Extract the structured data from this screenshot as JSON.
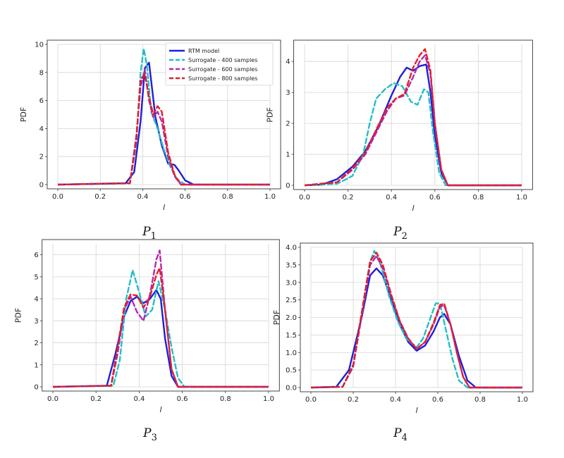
{
  "figure": {
    "legend": [
      {
        "label": "RTM model",
        "color": "#1f1fd6",
        "dash": "solid"
      },
      {
        "label": "Surrogate - 400 samples",
        "color": "#22bfc4",
        "dash": "dashed"
      },
      {
        "label": "Surrogate - 600 samples",
        "color": "#b22ab2",
        "dash": "dashed"
      },
      {
        "label": "Surrogate - 800 samples",
        "color": "#e0202a",
        "dash": "dashed"
      }
    ]
  },
  "chart_data": [
    {
      "type": "line",
      "caption": "P",
      "caption_sub": "1",
      "xlabel": "l",
      "ylabel": "PDF",
      "xlim": [
        0,
        1
      ],
      "ylim": [
        0,
        10
      ],
      "xticks": [
        0.0,
        0.2,
        0.4,
        0.6,
        0.8,
        1.0
      ],
      "yticks": [
        0,
        2,
        4,
        6,
        8,
        10
      ],
      "yfmt": 0,
      "grid": true,
      "legend": "top-right",
      "series": [
        {
          "name": "RTM model",
          "color": "#1f1fd6",
          "dash": "solid",
          "x": [
            0.0,
            0.32,
            0.36,
            0.39,
            0.41,
            0.43,
            0.46,
            0.49,
            0.52,
            0.55,
            0.57,
            0.6,
            0.64,
            1.0
          ],
          "y": [
            0,
            0.1,
            0.9,
            4.5,
            8.3,
            8.7,
            4.8,
            2.8,
            1.5,
            1.4,
            1.0,
            0.3,
            0,
            0
          ]
        },
        {
          "name": "Surrogate - 400 samples",
          "color": "#22bfc4",
          "dash": "dashed",
          "x": [
            0.0,
            0.34,
            0.37,
            0.39,
            0.405,
            0.42,
            0.44,
            0.47,
            0.5,
            0.53,
            0.56,
            0.6,
            1.0
          ],
          "y": [
            0,
            0.1,
            3.0,
            8.0,
            9.7,
            8.5,
            5.2,
            4.0,
            2.5,
            1.3,
            0.4,
            0,
            0
          ]
        },
        {
          "name": "Surrogate - 600 samples",
          "color": "#b22ab2",
          "dash": "dashed",
          "x": [
            0.0,
            0.34,
            0.37,
            0.39,
            0.41,
            0.43,
            0.45,
            0.47,
            0.49,
            0.52,
            0.55,
            0.58,
            1.0
          ],
          "y": [
            0,
            0.1,
            3.5,
            7.0,
            8.2,
            6.0,
            4.8,
            5.2,
            4.5,
            2.0,
            0.6,
            0,
            0
          ]
        },
        {
          "name": "Surrogate - 800 samples",
          "color": "#e0202a",
          "dash": "dashed",
          "x": [
            0.0,
            0.34,
            0.37,
            0.39,
            0.41,
            0.43,
            0.45,
            0.47,
            0.49,
            0.52,
            0.55,
            0.58,
            1.0
          ],
          "y": [
            0,
            0.1,
            3.2,
            7.5,
            7.9,
            6.2,
            5.0,
            5.6,
            5.2,
            2.3,
            0.7,
            0,
            0
          ]
        }
      ]
    },
    {
      "type": "line",
      "caption": "P",
      "caption_sub": "2",
      "xlabel": "l",
      "ylabel": "PDF",
      "xlim": [
        0,
        1
      ],
      "ylim": [
        0,
        4.55
      ],
      "xticks": [
        0.0,
        0.2,
        0.4,
        0.6,
        0.8,
        1.0
      ],
      "yticks": [
        0,
        1,
        2,
        3,
        4
      ],
      "yfmt": 0,
      "grid": true,
      "series": [
        {
          "name": "RTM model",
          "color": "#1f1fd6",
          "dash": "solid",
          "x": [
            0.0,
            0.08,
            0.15,
            0.22,
            0.28,
            0.34,
            0.4,
            0.44,
            0.47,
            0.5,
            0.53,
            0.56,
            0.58,
            0.6,
            0.63,
            0.66,
            1.0
          ],
          "y": [
            0,
            0.02,
            0.2,
            0.6,
            1.1,
            1.9,
            2.9,
            3.5,
            3.8,
            3.7,
            3.85,
            3.9,
            3.0,
            1.6,
            0.4,
            0,
            0
          ]
        },
        {
          "name": "Surrogate - 400 samples",
          "color": "#22bfc4",
          "dash": "dashed",
          "x": [
            0.0,
            0.15,
            0.22,
            0.27,
            0.3,
            0.33,
            0.37,
            0.41,
            0.45,
            0.49,
            0.52,
            0.55,
            0.57,
            0.59,
            0.62,
            0.65,
            1.0
          ],
          "y": [
            0,
            0.05,
            0.3,
            1.0,
            2.0,
            2.8,
            3.1,
            3.3,
            3.2,
            2.7,
            2.6,
            3.1,
            3.0,
            1.8,
            0.4,
            0,
            0
          ]
        },
        {
          "name": "Surrogate - 600 samples",
          "color": "#b22ab2",
          "dash": "dashed",
          "x": [
            0.0,
            0.15,
            0.22,
            0.28,
            0.33,
            0.38,
            0.42,
            0.46,
            0.5,
            0.53,
            0.555,
            0.58,
            0.6,
            0.63,
            0.66,
            1.0
          ],
          "y": [
            0,
            0.1,
            0.5,
            1.0,
            1.7,
            2.4,
            2.8,
            2.9,
            3.5,
            4.0,
            4.2,
            3.6,
            2.0,
            0.5,
            0,
            0
          ]
        },
        {
          "name": "Surrogate - 800 samples",
          "color": "#e0202a",
          "dash": "dashed",
          "x": [
            0.0,
            0.15,
            0.22,
            0.28,
            0.33,
            0.38,
            0.42,
            0.46,
            0.5,
            0.53,
            0.555,
            0.58,
            0.6,
            0.63,
            0.66,
            1.0
          ],
          "y": [
            0,
            0.1,
            0.55,
            1.05,
            1.8,
            2.5,
            2.8,
            2.95,
            3.8,
            4.2,
            4.4,
            3.7,
            2.0,
            0.5,
            0,
            0
          ]
        }
      ]
    },
    {
      "type": "line",
      "caption": "P",
      "caption_sub": "3",
      "xlabel": "l",
      "ylabel": "PDF",
      "xlim": [
        0,
        1
      ],
      "ylim": [
        0,
        6.5
      ],
      "xticks": [
        0.0,
        0.2,
        0.4,
        0.6,
        0.8,
        1.0
      ],
      "yticks": [
        0,
        1,
        2,
        3,
        4,
        5,
        6
      ],
      "yfmt": 0,
      "grid": true,
      "series": [
        {
          "name": "RTM model",
          "color": "#1f1fd6",
          "dash": "solid",
          "x": [
            0.0,
            0.25,
            0.29,
            0.33,
            0.36,
            0.39,
            0.42,
            0.45,
            0.48,
            0.5,
            0.52,
            0.55,
            0.58,
            1.0
          ],
          "y": [
            0,
            0.05,
            1.5,
            3.2,
            3.9,
            4.1,
            3.8,
            4.0,
            4.4,
            4.0,
            2.2,
            0.5,
            0,
            0
          ]
        },
        {
          "name": "Surrogate - 400 samples",
          "color": "#22bfc4",
          "dash": "dashed",
          "x": [
            0.0,
            0.28,
            0.31,
            0.34,
            0.37,
            0.4,
            0.43,
            0.46,
            0.49,
            0.52,
            0.55,
            0.58,
            0.61,
            1.0
          ],
          "y": [
            0,
            0.05,
            1.2,
            4.0,
            5.3,
            4.3,
            3.2,
            3.5,
            4.8,
            3.5,
            1.8,
            0.4,
            0,
            0
          ]
        },
        {
          "name": "Surrogate - 600 samples",
          "color": "#b22ab2",
          "dash": "dashed",
          "x": [
            0.0,
            0.27,
            0.3,
            0.33,
            0.36,
            0.39,
            0.42,
            0.45,
            0.48,
            0.495,
            0.52,
            0.55,
            0.58,
            1.0
          ],
          "y": [
            0,
            0.05,
            1.5,
            3.5,
            4.1,
            3.4,
            3.0,
            4.2,
            5.8,
            6.2,
            3.5,
            0.8,
            0,
            0
          ]
        },
        {
          "name": "Surrogate - 800 samples",
          "color": "#e0202a",
          "dash": "dashed",
          "x": [
            0.0,
            0.27,
            0.3,
            0.33,
            0.36,
            0.39,
            0.42,
            0.45,
            0.48,
            0.495,
            0.52,
            0.55,
            0.58,
            1.0
          ],
          "y": [
            0,
            0.05,
            1.8,
            3.6,
            4.2,
            4.15,
            3.6,
            4.1,
            5.1,
            5.4,
            3.5,
            0.8,
            0,
            0
          ]
        }
      ]
    },
    {
      "type": "line",
      "caption": "P",
      "caption_sub": "4",
      "xlabel": "l",
      "ylabel": "PDF",
      "xlim": [
        0,
        1
      ],
      "ylim": [
        0,
        4.0
      ],
      "xticks": [
        0.0,
        0.2,
        0.4,
        0.6,
        0.8,
        1.0
      ],
      "yticks": [
        0.0,
        0.5,
        1.0,
        1.5,
        2.0,
        2.5,
        3.0,
        3.5,
        4.0
      ],
      "yfmt": 1,
      "grid": true,
      "series": [
        {
          "name": "RTM model",
          "color": "#1f1fd6",
          "dash": "solid",
          "x": [
            0.0,
            0.12,
            0.18,
            0.24,
            0.28,
            0.31,
            0.34,
            0.38,
            0.42,
            0.46,
            0.5,
            0.54,
            0.58,
            0.61,
            0.63,
            0.66,
            0.7,
            0.74,
            0.78,
            1.0
          ],
          "y": [
            0,
            0.02,
            0.5,
            2.0,
            3.2,
            3.4,
            3.2,
            2.5,
            1.8,
            1.3,
            1.05,
            1.2,
            1.6,
            2.0,
            2.1,
            1.8,
            0.9,
            0.2,
            0,
            0
          ]
        },
        {
          "name": "Surrogate - 400 samples",
          "color": "#22bfc4",
          "dash": "dashed",
          "x": [
            0.0,
            0.15,
            0.2,
            0.25,
            0.28,
            0.3,
            0.33,
            0.37,
            0.41,
            0.45,
            0.5,
            0.53,
            0.56,
            0.59,
            0.61,
            0.64,
            0.67,
            0.7,
            0.74,
            1.0
          ],
          "y": [
            0,
            0.02,
            0.6,
            2.5,
            3.6,
            3.9,
            3.5,
            2.6,
            1.9,
            1.4,
            1.15,
            1.4,
            1.9,
            2.4,
            2.4,
            1.6,
            0.8,
            0.2,
            0,
            0
          ]
        },
        {
          "name": "Surrogate - 600 samples",
          "color": "#b22ab2",
          "dash": "dashed",
          "x": [
            0.0,
            0.15,
            0.2,
            0.25,
            0.28,
            0.31,
            0.34,
            0.38,
            0.42,
            0.46,
            0.5,
            0.54,
            0.58,
            0.61,
            0.63,
            0.66,
            0.69,
            0.72,
            0.75,
            1.0
          ],
          "y": [
            0,
            0.02,
            0.6,
            2.4,
            3.5,
            3.75,
            3.4,
            2.6,
            1.9,
            1.4,
            1.1,
            1.3,
            1.8,
            2.3,
            2.35,
            1.8,
            1.0,
            0.3,
            0,
            0
          ]
        },
        {
          "name": "Surrogate - 800 samples",
          "color": "#e0202a",
          "dash": "dashed",
          "x": [
            0.0,
            0.15,
            0.2,
            0.25,
            0.28,
            0.31,
            0.34,
            0.38,
            0.42,
            0.46,
            0.5,
            0.54,
            0.58,
            0.61,
            0.63,
            0.66,
            0.69,
            0.72,
            0.75,
            1.0
          ],
          "y": [
            0,
            0.02,
            0.65,
            2.5,
            3.6,
            3.85,
            3.5,
            2.65,
            1.9,
            1.4,
            1.1,
            1.3,
            1.85,
            2.35,
            2.4,
            1.8,
            1.0,
            0.3,
            0,
            0
          ]
        }
      ]
    }
  ]
}
